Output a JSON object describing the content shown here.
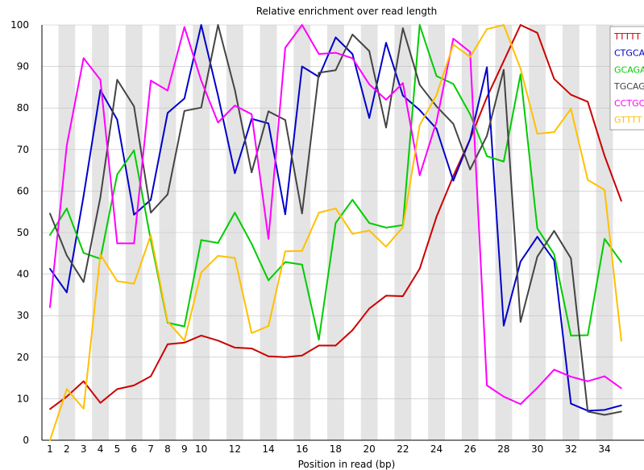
{
  "chart_data": {
    "type": "line",
    "title": "Relative enrichment over read length",
    "xlabel": "Position in read (bp)",
    "ylabel": "",
    "x": [
      1,
      2,
      3,
      4,
      5,
      6,
      7,
      8,
      9,
      10,
      11,
      12,
      13,
      14,
      15,
      16,
      17,
      18,
      19,
      20,
      21,
      22,
      23,
      24,
      25,
      26,
      27,
      28,
      29,
      30,
      31,
      32,
      33,
      34,
      35
    ],
    "x_tick_labels": [
      "1",
      "2",
      "3",
      "4",
      "5",
      "6",
      "7",
      "8",
      "9",
      "10",
      "12",
      "14",
      "16",
      "18",
      "20",
      "22",
      "24",
      "26",
      "28",
      "30",
      "32",
      "34"
    ],
    "x_tick_positions": [
      1,
      2,
      3,
      4,
      5,
      6,
      7,
      8,
      9,
      10,
      12,
      14,
      16,
      18,
      20,
      22,
      24,
      26,
      28,
      30,
      32,
      34
    ],
    "y_ticks": [
      0,
      10,
      20,
      30,
      40,
      50,
      60,
      70,
      80,
      90,
      100
    ],
    "ylim": [
      0,
      100
    ],
    "grid": "alternating vertical bands",
    "legend_position": "top-right",
    "series": [
      {
        "name": "TTTTT",
        "color": "#cc0000",
        "values": [
          7.5,
          10.5,
          14.2,
          9,
          12.3,
          13.2,
          15.4,
          23.1,
          23.5,
          25.2,
          24,
          22.3,
          22.1,
          20.2,
          20,
          20.4,
          22.8,
          22.8,
          26.5,
          31.7,
          34.8,
          34.7,
          41.3,
          53.8,
          63.6,
          72.5,
          82.6,
          91.3,
          100,
          98.1,
          87,
          83.2,
          81.5,
          68.5,
          57.6
        ]
      },
      {
        "name": "CTGCA",
        "color": "#0000cc",
        "values": [
          41.3,
          35.6,
          58.8,
          84.3,
          77.2,
          54.3,
          57.9,
          78.8,
          82.3,
          100,
          83,
          64.3,
          77.4,
          76.3,
          54.4,
          90,
          87.5,
          97,
          93,
          77.6,
          95.7,
          83,
          79.5,
          75,
          62.5,
          72.5,
          89.8,
          27.6,
          43,
          49,
          43.3,
          8.8,
          7.1,
          7.3,
          8.4
        ]
      },
      {
        "name": "GCAGA",
        "color": "#00cc00",
        "values": [
          49.4,
          55.8,
          45.1,
          43.7,
          64,
          69.8,
          48.2,
          28.3,
          27.4,
          48.2,
          47.5,
          54.8,
          47.3,
          38.5,
          42.9,
          42.3,
          24.2,
          52.3,
          57.9,
          52.3,
          51.2,
          51.8,
          100,
          87.7,
          85.8,
          78.5,
          68.4,
          67.1,
          88.1,
          51,
          44.8,
          25.2,
          25.3,
          48.5,
          42.9
        ]
      },
      {
        "name": "TGCAG",
        "color": "#444444",
        "values": [
          54.6,
          44.5,
          38.1,
          58.5,
          86.8,
          80.4,
          54.8,
          59.2,
          79.3,
          80.1,
          100,
          84.4,
          64.5,
          79.2,
          77.1,
          54.6,
          88.5,
          89.1,
          97.7,
          93.7,
          75.3,
          99.2,
          85.6,
          80.4,
          76.2,
          65.2,
          73.3,
          89.2,
          28.5,
          44.2,
          50.4,
          43.8,
          6.9,
          6.1,
          6.9
        ]
      },
      {
        "name": "CCTGC",
        "color": "#ff00ff",
        "values": [
          32,
          71,
          92,
          86.8,
          47.4,
          47.4,
          86.6,
          84.2,
          99.5,
          86.6,
          76.5,
          80.6,
          78.5,
          48.5,
          94.5,
          100,
          93,
          93.3,
          92,
          85.7,
          82,
          86,
          63.8,
          76.7,
          96.7,
          93.5,
          13.2,
          10.5,
          8.7,
          12.6,
          17,
          15.3,
          14.2,
          15.4,
          12.5
        ]
      },
      {
        "name": "GTTTT",
        "color": "#ffc000",
        "values": [
          0,
          12.3,
          7.6,
          44.7,
          38.3,
          37.7,
          49.4,
          28.6,
          24,
          40.4,
          44.4,
          43.9,
          25.8,
          27.5,
          45.5,
          45.6,
          54.8,
          55.8,
          49.7,
          50.5,
          46.6,
          51.3,
          75.9,
          83.1,
          95.3,
          92.3,
          99,
          100,
          89.5,
          73.8,
          74.2,
          79.8,
          62.7,
          60.3,
          23.9
        ]
      }
    ]
  }
}
